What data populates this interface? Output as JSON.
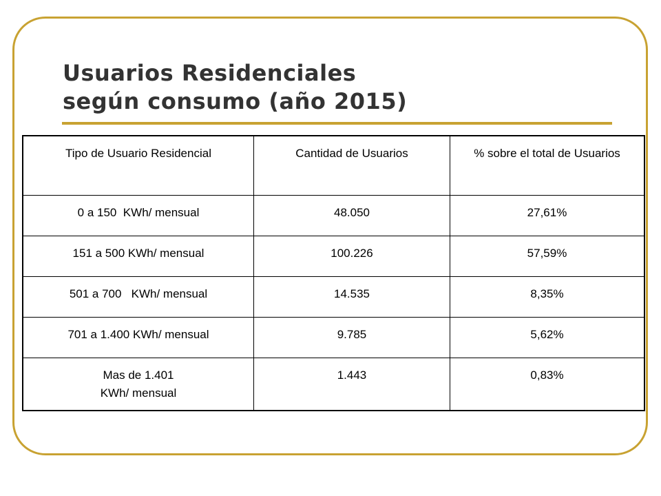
{
  "slide": {
    "title_line1": "Usuarios Residenciales",
    "title_line2": "según consumo (año 2015)",
    "accent_color": "#c8a232"
  },
  "table": {
    "headers": [
      "Tipo de Usuario Residencial",
      "Cantidad de Usuarios",
      "% sobre el total de Usuarios"
    ],
    "rows": [
      {
        "tipo": "0 a 150  KWh/ mensual",
        "cantidad": "48.050",
        "porcentaje": "27,61%"
      },
      {
        "tipo": "151 a 500 KWh/ mensual",
        "cantidad": "100.226",
        "porcentaje": "57,59%"
      },
      {
        "tipo": "501 a 700   KWh/ mensual",
        "cantidad": "14.535",
        "porcentaje": "8,35%"
      },
      {
        "tipo": "701 a 1.400 KWh/ mensual",
        "cantidad": "9.785",
        "porcentaje": "5,62%"
      },
      {
        "tipo_line1": "Mas de 1.401",
        "tipo_line2": "KWh/ mensual",
        "cantidad": "1.443",
        "porcentaje": "0,83%"
      }
    ]
  }
}
